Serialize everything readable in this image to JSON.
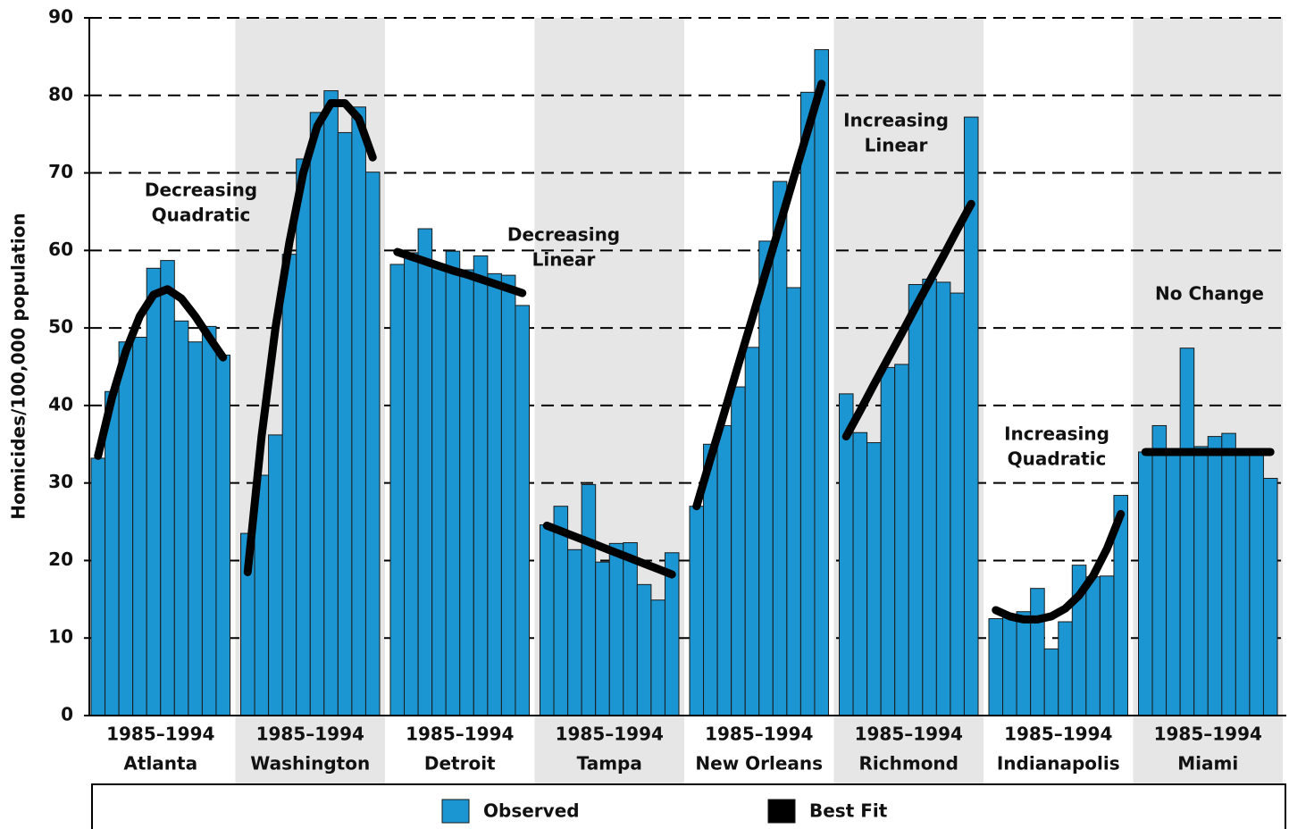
{
  "chart_data": {
    "type": "bar",
    "ylabel": "Homicides/100,000 population",
    "ylim": [
      0,
      90
    ],
    "yticks": [
      0,
      10,
      20,
      30,
      40,
      50,
      60,
      70,
      80,
      90
    ],
    "grid": true,
    "series": [
      {
        "name": "Observed",
        "color": "#1b96d2"
      },
      {
        "name": "Best Fit",
        "color": "#000000"
      }
    ],
    "groups": [
      {
        "period": "1985–1994",
        "city": "Atlanta",
        "shaded": false,
        "annotation": [
          "Decreasing",
          "Quadratic"
        ],
        "observed": [
          33.2,
          41.8,
          48.2,
          48.8,
          57.7,
          58.7,
          50.9,
          48.2,
          50.2,
          46.5
        ],
        "fit": [
          33.5,
          41,
          47,
          51.5,
          54.3,
          55,
          53.8,
          51.5,
          48.8,
          46.2
        ]
      },
      {
        "period": "1985–1994",
        "city": "Washington",
        "shaded": true,
        "annotation": null,
        "observed": [
          23.5,
          31,
          36.2,
          59.5,
          71.8,
          77.8,
          80.6,
          75.2,
          78.5,
          70.1
        ],
        "fit": [
          18.5,
          36,
          50,
          61,
          70,
          76,
          79,
          79,
          77,
          72
        ]
      },
      {
        "period": "1985–1994",
        "city": "Detroit",
        "shaded": false,
        "annotation": [
          "Decreasing",
          "Linear"
        ],
        "observed": [
          58.2,
          59.7,
          62.8,
          58,
          59.9,
          57.5,
          59.3,
          57,
          56.8,
          52.9
        ],
        "fit": [
          59.8,
          59.2,
          58.6,
          58,
          57.4,
          56.9,
          56.3,
          55.7,
          55.1,
          54.5
        ]
      },
      {
        "period": "1985–1994",
        "city": "Tampa",
        "shaded": true,
        "annotation": null,
        "observed": [
          24.6,
          27,
          21.4,
          29.8,
          19.8,
          22.2,
          22.3,
          16.9,
          14.9,
          21
        ],
        "fit": [
          24.5,
          23.8,
          23.1,
          22.4,
          21.7,
          21,
          20.3,
          19.6,
          18.9,
          18.2
        ]
      },
      {
        "period": "1985–1994",
        "city": "New Orleans",
        "shaded": false,
        "annotation": null,
        "observed": [
          27,
          35,
          37.4,
          42.4,
          47.5,
          61.2,
          68.9,
          55.2,
          80.4,
          85.9
        ],
        "fit": [
          27,
          33.1,
          39.1,
          45.2,
          51.2,
          57.3,
          63.3,
          69.4,
          75.4,
          81.5
        ]
      },
      {
        "period": "1985–1994",
        "city": "Richmond",
        "shaded": true,
        "annotation": [
          "Increasing",
          "Linear"
        ],
        "observed": [
          41.5,
          36.5,
          35.2,
          44.9,
          45.3,
          55.6,
          56.3,
          55.9,
          54.5,
          77.2
        ],
        "fit": [
          36,
          39.3,
          42.7,
          46,
          49.3,
          52.7,
          56,
          59.3,
          62.7,
          66
        ]
      },
      {
        "period": "1985–1994",
        "city": "Indianapolis",
        "shaded": false,
        "annotation": [
          "Increasing",
          "Quadratic"
        ],
        "observed": [
          12.5,
          13,
          13.4,
          16.4,
          8.6,
          12.1,
          19.4,
          17.9,
          18,
          28.4
        ],
        "fit": [
          13.6,
          12.8,
          12.4,
          12.4,
          12.8,
          13.8,
          15.5,
          18,
          21.5,
          26
        ]
      },
      {
        "period": "1985–1994",
        "city": "Miami",
        "shaded": true,
        "annotation": [
          "No Change"
        ],
        "observed": [
          34,
          37.4,
          34,
          47.4,
          34.7,
          36,
          36.4,
          33.8,
          34,
          30.6
        ],
        "fit": [
          34,
          34,
          34,
          34,
          34,
          34,
          34,
          34,
          34,
          34
        ]
      }
    ]
  }
}
